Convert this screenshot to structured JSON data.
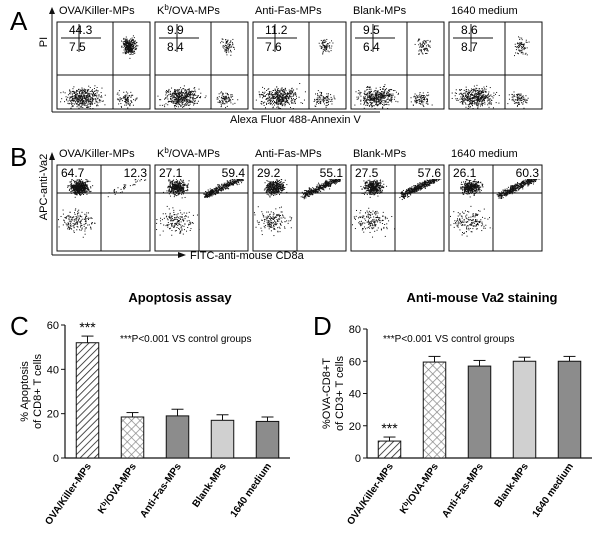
{
  "panel_letters": [
    "A",
    "B",
    "C",
    "D"
  ],
  "flow_a": {
    "y_axis_label": "PI",
    "x_axis_label": "Alexa Fluor 488-Annexin V",
    "plots": [
      {
        "title": "OVA/Killer-MPs",
        "q_top": "44.3",
        "q_bottom": "7.5"
      },
      {
        "title": "Kb/OVA-MPs",
        "q_top": "9.9",
        "q_bottom": "8.4"
      },
      {
        "title": "Anti-Fas-MPs",
        "q_top": "11.2",
        "q_bottom": "7.6"
      },
      {
        "title": "Blank-MPs",
        "q_top": "9.5",
        "q_bottom": "6.4"
      },
      {
        "title": "1640 medium",
        "q_top": "8.6",
        "q_bottom": "8.7"
      }
    ]
  },
  "flow_b": {
    "y_axis_label": "APC-anti-Va2",
    "x_axis_label": "FITC-anti-mouse CD8a",
    "plots": [
      {
        "title": "OVA/Killer-MPs",
        "q_left": "64.7",
        "q_right": "12.3"
      },
      {
        "title": "Kb/OVA-MPs",
        "q_left": "27.1",
        "q_right": "59.4"
      },
      {
        "title": "Anti-Fas-MPs",
        "q_left": "29.2",
        "q_right": "55.1"
      },
      {
        "title": "Blank-MPs",
        "q_left": "27.5",
        "q_right": "57.6"
      },
      {
        "title": "1640 medium",
        "q_left": "26.1",
        "q_right": "60.3"
      }
    ]
  },
  "chart_data": [
    {
      "type": "bar",
      "panel": "C",
      "title": "Apoptosis assay",
      "annotation": "***P<0.001 VS control groups",
      "significance": "***",
      "ylabel_line1": "% Apoptosis",
      "ylabel_line2": "of CD8+ T cells",
      "ylim": [
        0,
        60
      ],
      "yticks": [
        0,
        20,
        40,
        60
      ],
      "categories": [
        "OVA/Killer-MPs",
        "Kb/OVA-MPs",
        "Anti-Fas-MPs",
        "Blank-MPs",
        "1640 medium"
      ],
      "values": [
        52,
        18.5,
        19,
        17,
        16.5
      ],
      "errors": [
        3,
        2,
        3,
        2.5,
        2
      ],
      "fills": [
        "hatch",
        "crosshatch",
        "#8c8c8c",
        "#d0d0d0",
        "#8c8c8c"
      ]
    },
    {
      "type": "bar",
      "panel": "D",
      "title": "Anti-mouse Va2 staining",
      "annotation": "***P<0.001 VS control groups",
      "significance": "***",
      "ylabel_line1": "%OVA-CD8+T",
      "ylabel_line2": "of CD3+ T cells",
      "ylim": [
        0,
        80
      ],
      "yticks": [
        0,
        20,
        40,
        60,
        80
      ],
      "categories": [
        "OVA/Killer-MPs",
        "Kb/OVA-MPs",
        "Anti-Fas-MPs",
        "Blank-MPs",
        "1640 medium"
      ],
      "values": [
        10.5,
        59.5,
        57,
        60,
        60
      ],
      "errors": [
        2.5,
        3.5,
        3.5,
        2.5,
        3
      ],
      "fills": [
        "hatch",
        "crosshatch",
        "#8c8c8c",
        "#d0d0d0",
        "#8c8c8c"
      ]
    }
  ]
}
